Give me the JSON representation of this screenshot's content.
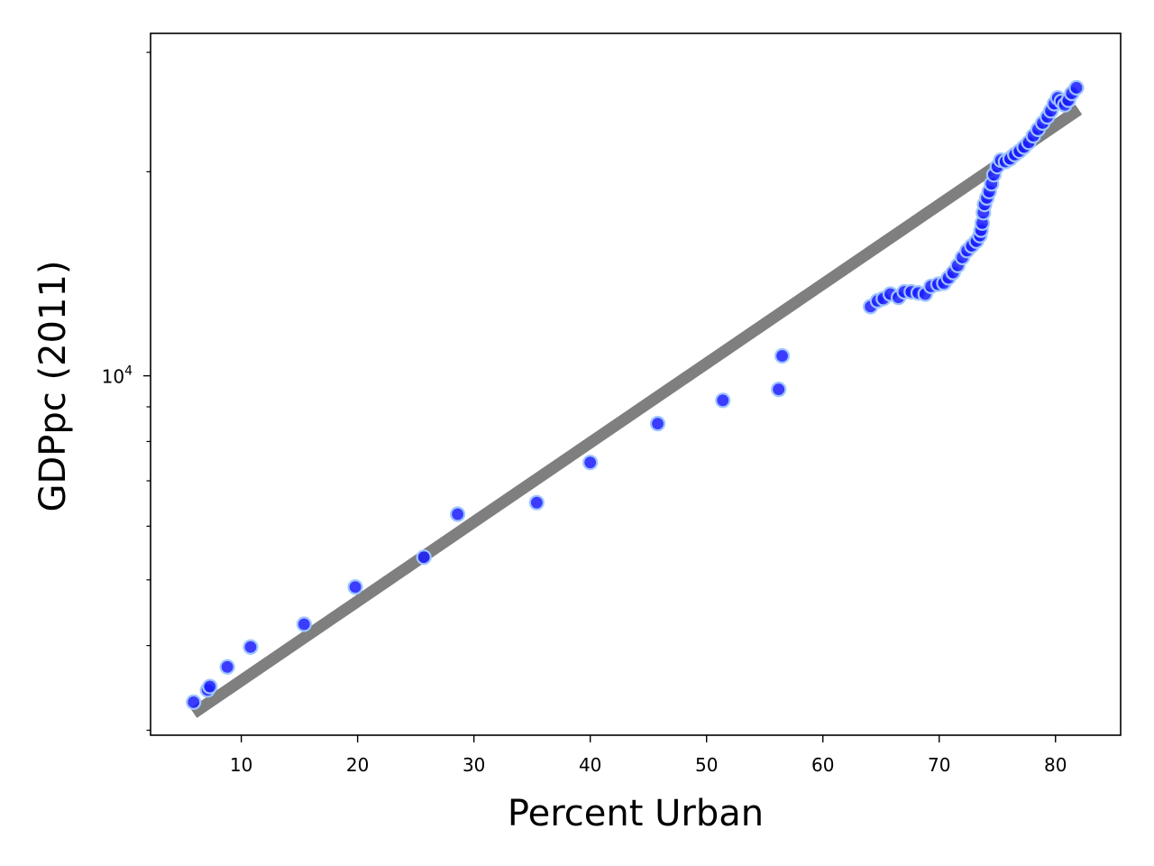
{
  "chart_data": {
    "type": "scatter",
    "xlabel": "Percent Urban",
    "ylabel": "GDPpc (2011)",
    "xlim": [
      2.2,
      85.6
    ],
    "ylim": [
      2950,
      32000
    ],
    "yscale": "log",
    "grid": false,
    "legend": "none",
    "x_ticks": [
      10,
      20,
      30,
      40,
      50,
      60,
      70,
      80
    ],
    "y_major_tick": {
      "value": 10000,
      "base": "10",
      "exp": "4"
    },
    "y_minor_ticks": [
      3000,
      4000,
      5000,
      6000,
      7000,
      8000,
      9000,
      20000,
      30000
    ],
    "colors": {
      "points": "#1a1aff",
      "point_edge": "#9ec5ff",
      "fit_line": "#7f7f7f",
      "frame": "#000000"
    },
    "fit_line": {
      "x": [
        5.9,
        82.0
      ],
      "y": [
        3180,
        24700
      ]
    },
    "points": [
      {
        "x": 5.9,
        "y": 3300
      },
      {
        "x": 7.1,
        "y": 3440
      },
      {
        "x": 7.3,
        "y": 3480
      },
      {
        "x": 8.8,
        "y": 3720
      },
      {
        "x": 10.8,
        "y": 3980
      },
      {
        "x": 15.4,
        "y": 4300
      },
      {
        "x": 19.8,
        "y": 4880
      },
      {
        "x": 25.7,
        "y": 5400
      },
      {
        "x": 28.6,
        "y": 6250
      },
      {
        "x": 35.4,
        "y": 6500
      },
      {
        "x": 40.0,
        "y": 7450
      },
      {
        "x": 45.8,
        "y": 8500
      },
      {
        "x": 51.4,
        "y": 9200
      },
      {
        "x": 56.2,
        "y": 9550
      },
      {
        "x": 56.5,
        "y": 10700
      },
      {
        "x": 64.1,
        "y": 12650
      },
      {
        "x": 64.7,
        "y": 12900
      },
      {
        "x": 65.2,
        "y": 13000
      },
      {
        "x": 65.8,
        "y": 13200
      },
      {
        "x": 66.5,
        "y": 13050
      },
      {
        "x": 67.0,
        "y": 13300
      },
      {
        "x": 67.6,
        "y": 13300
      },
      {
        "x": 68.2,
        "y": 13250
      },
      {
        "x": 68.8,
        "y": 13200
      },
      {
        "x": 69.3,
        "y": 13550
      },
      {
        "x": 69.9,
        "y": 13650
      },
      {
        "x": 70.4,
        "y": 13700
      },
      {
        "x": 70.8,
        "y": 13950
      },
      {
        "x": 71.2,
        "y": 14200
      },
      {
        "x": 71.6,
        "y": 14550
      },
      {
        "x": 72.0,
        "y": 14950
      },
      {
        "x": 72.4,
        "y": 15300
      },
      {
        "x": 72.8,
        "y": 15550
      },
      {
        "x": 73.2,
        "y": 15800
      },
      {
        "x": 73.5,
        "y": 16100
      },
      {
        "x": 73.6,
        "y": 16400
      },
      {
        "x": 73.7,
        "y": 16800
      },
      {
        "x": 73.8,
        "y": 17400
      },
      {
        "x": 73.9,
        "y": 17900
      },
      {
        "x": 74.1,
        "y": 18300
      },
      {
        "x": 74.3,
        "y": 18700
      },
      {
        "x": 74.5,
        "y": 19200
      },
      {
        "x": 74.7,
        "y": 19800
      },
      {
        "x": 75.0,
        "y": 20350
      },
      {
        "x": 75.3,
        "y": 20800
      },
      {
        "x": 75.7,
        "y": 20700
      },
      {
        "x": 76.1,
        "y": 20900
      },
      {
        "x": 76.5,
        "y": 21200
      },
      {
        "x": 76.9,
        "y": 21450
      },
      {
        "x": 77.3,
        "y": 21750
      },
      {
        "x": 77.7,
        "y": 22100
      },
      {
        "x": 78.1,
        "y": 22600
      },
      {
        "x": 78.5,
        "y": 23100
      },
      {
        "x": 78.9,
        "y": 23600
      },
      {
        "x": 79.3,
        "y": 24100
      },
      {
        "x": 79.6,
        "y": 24600
      },
      {
        "x": 79.9,
        "y": 25200
      },
      {
        "x": 80.2,
        "y": 25700
      },
      {
        "x": 80.5,
        "y": 25400
      },
      {
        "x": 80.8,
        "y": 25100
      },
      {
        "x": 81.1,
        "y": 25500
      },
      {
        "x": 81.4,
        "y": 26100
      },
      {
        "x": 81.8,
        "y": 26600
      }
    ]
  }
}
